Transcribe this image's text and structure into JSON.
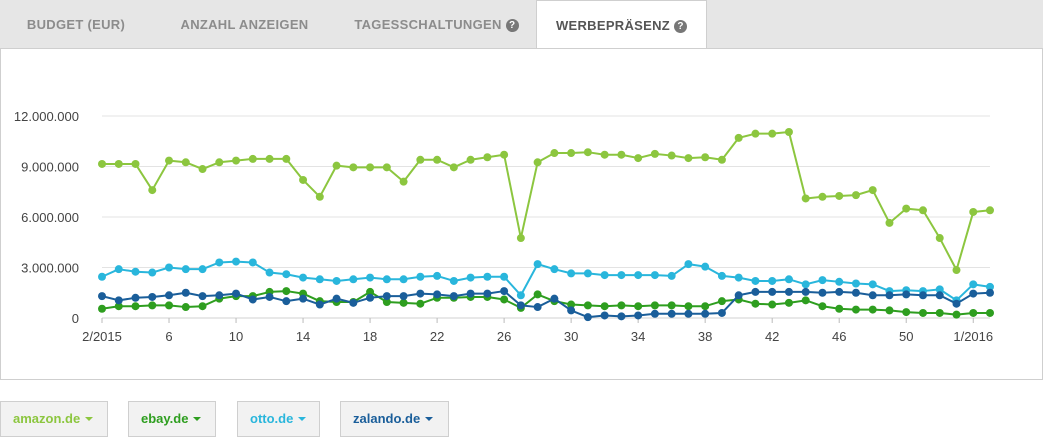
{
  "tabs": [
    {
      "label": "BUDGET (EUR)"
    },
    {
      "label": "ANZAHL ANZEIGEN"
    },
    {
      "label": "TAGESSCHALTUNGEN",
      "help_icon": "question-icon"
    },
    {
      "label": "WERBEPRÄSENZ",
      "help_icon": "question-icon",
      "active": true
    }
  ],
  "legend": [
    {
      "label": "amazon.de",
      "color": "#8cc63f"
    },
    {
      "label": "ebay.de",
      "color": "#2e9e1f"
    },
    {
      "label": "otto.de",
      "color": "#29b6dc"
    },
    {
      "label": "zalando.de",
      "color": "#1a5e9a"
    }
  ],
  "chart_data": {
    "type": "line",
    "x": [
      2,
      3,
      4,
      5,
      6,
      7,
      8,
      9,
      10,
      11,
      12,
      13,
      14,
      15,
      16,
      17,
      18,
      19,
      20,
      21,
      22,
      23,
      24,
      25,
      26,
      27,
      28,
      29,
      30,
      31,
      32,
      33,
      34,
      35,
      36,
      37,
      38,
      39,
      40,
      41,
      42,
      43,
      44,
      45,
      46,
      47,
      48,
      49,
      50,
      51,
      52,
      53,
      1,
      2
    ],
    "x_tick_labels": [
      "2/2015",
      "6",
      "10",
      "14",
      "18",
      "22",
      "26",
      "30",
      "34",
      "38",
      "42",
      "46",
      "50",
      "1/2016"
    ],
    "y_tick_labels": [
      "0",
      "3.000.000",
      "6.000.000",
      "9.000.000",
      "12.000.000"
    ],
    "ylim": [
      0,
      12000000
    ],
    "grid": true,
    "series": [
      {
        "name": "amazon.de",
        "color": "#8cc63f",
        "values": [
          9150000,
          9150000,
          9150000,
          7600000,
          9350000,
          9250000,
          8850000,
          9250000,
          9350000,
          9450000,
          9450000,
          9450000,
          8200000,
          7200000,
          9050000,
          8950000,
          8950000,
          8950000,
          8100000,
          9400000,
          9400000,
          8950000,
          9400000,
          9550000,
          9700000,
          4750000,
          9250000,
          9800000,
          9800000,
          9850000,
          9700000,
          9700000,
          9500000,
          9750000,
          9650000,
          9500000,
          9550000,
          9400000,
          10700000,
          10950000,
          10950000,
          11050000,
          7100000,
          7200000,
          7250000,
          7300000,
          7600000,
          5650000,
          6500000,
          6400000,
          4750000,
          2850000,
          6300000,
          6400000
        ]
      },
      {
        "name": "ebay.de",
        "color": "#2e9e1f",
        "values": [
          550000,
          700000,
          700000,
          750000,
          750000,
          650000,
          700000,
          1150000,
          1300000,
          1300000,
          1550000,
          1600000,
          1450000,
          1000000,
          950000,
          950000,
          1550000,
          950000,
          900000,
          850000,
          1200000,
          1200000,
          1250000,
          1250000,
          1100000,
          600000,
          1400000,
          1000000,
          800000,
          750000,
          700000,
          750000,
          700000,
          750000,
          750000,
          700000,
          700000,
          1000000,
          1100000,
          850000,
          800000,
          900000,
          1050000,
          700000,
          550000,
          500000,
          500000,
          450000,
          350000,
          300000,
          300000,
          200000,
          300000,
          300000
        ]
      },
      {
        "name": "otto.de",
        "color": "#29b6dc",
        "values": [
          2450000,
          2900000,
          2750000,
          2700000,
          3000000,
          2900000,
          2900000,
          3300000,
          3350000,
          3300000,
          2700000,
          2600000,
          2400000,
          2300000,
          2200000,
          2300000,
          2400000,
          2300000,
          2300000,
          2450000,
          2500000,
          2200000,
          2400000,
          2450000,
          2450000,
          1350000,
          3200000,
          2900000,
          2650000,
          2650000,
          2550000,
          2550000,
          2550000,
          2550000,
          2500000,
          3200000,
          3050000,
          2500000,
          2400000,
          2200000,
          2200000,
          2300000,
          2000000,
          2250000,
          2150000,
          2050000,
          2000000,
          1600000,
          1650000,
          1600000,
          1700000,
          1050000,
          2000000,
          1850000
        ]
      },
      {
        "name": "zalando.de",
        "color": "#1a5e9a",
        "values": [
          1300000,
          1050000,
          1200000,
          1250000,
          1350000,
          1500000,
          1300000,
          1350000,
          1450000,
          1100000,
          1250000,
          1000000,
          1150000,
          800000,
          1150000,
          900000,
          1200000,
          1300000,
          1300000,
          1450000,
          1400000,
          1300000,
          1450000,
          1450000,
          1600000,
          750000,
          650000,
          1150000,
          450000,
          50000,
          150000,
          100000,
          150000,
          250000,
          250000,
          250000,
          250000,
          300000,
          1350000,
          1550000,
          1550000,
          1550000,
          1550000,
          1500000,
          1550000,
          1500000,
          1350000,
          1350000,
          1400000,
          1350000,
          1350000,
          850000,
          1450000,
          1500000
        ]
      }
    ]
  }
}
